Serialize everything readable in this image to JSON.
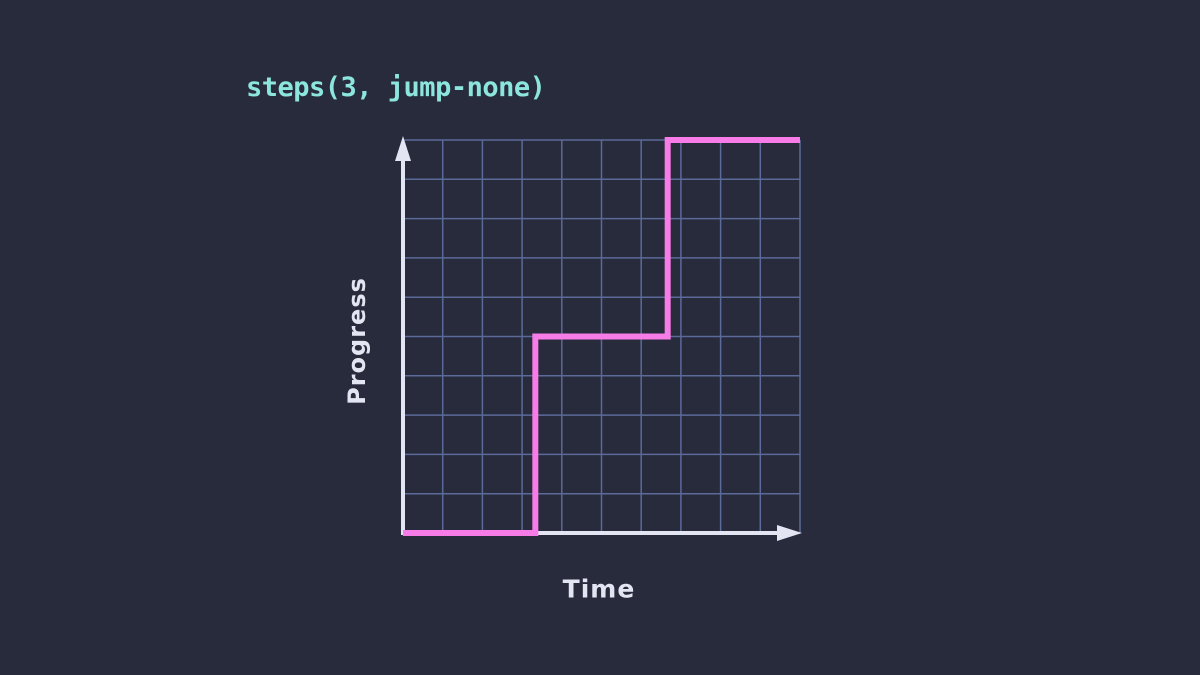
{
  "title": {
    "text": "steps(3, jump-none)"
  },
  "colors": {
    "background": "#282b3c",
    "grid_line": "#5b6a99",
    "axis": "#e3e5f2",
    "step_line": "#f87ce8",
    "title": "#8ce6de",
    "label": "#e3e5f2"
  },
  "chart_data": {
    "type": "line",
    "subtype": "css-step-timing-function",
    "title": "steps(3, jump-none)",
    "xlabel": "Time",
    "ylabel": "Progress",
    "x_range": [
      0,
      1
    ],
    "y_range": [
      0,
      1
    ],
    "grid": {
      "columns": 10,
      "rows": 10,
      "visible": true
    },
    "legend": "none",
    "axis_arrows": true,
    "series": [
      {
        "name": "steps(3, jump-none)",
        "color": "#f87ce8",
        "line_width": 6,
        "points": [
          [
            0,
            0
          ],
          [
            0.3333,
            0
          ],
          [
            0.3333,
            0.5
          ],
          [
            0.6667,
            0.5
          ],
          [
            0.6667,
            1
          ],
          [
            1,
            1
          ]
        ]
      }
    ]
  }
}
